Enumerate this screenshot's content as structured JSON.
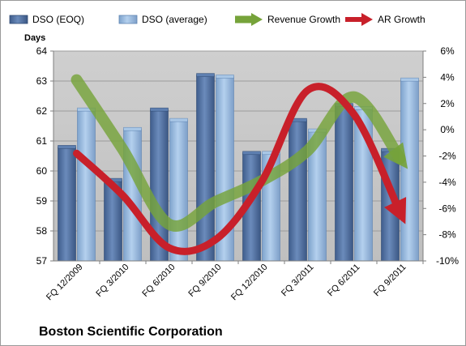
{
  "chart_data": {
    "type": "bar",
    "title": "Boston Scientific Corporation",
    "ylabel": "Days",
    "categories": [
      "FQ 12/2009",
      "FQ 3/2010",
      "FQ 6/2010",
      "FQ 9/2010",
      "FQ 12/2010",
      "FQ 3/2011",
      "FQ 6/2011",
      "FQ 9/2011"
    ],
    "series": [
      {
        "name": "DSO (EOQ)",
        "axis": "left",
        "kind": "bar",
        "values": [
          60.8,
          59.7,
          62.05,
          63.2,
          60.6,
          61.7,
          62.2,
          60.7
        ],
        "color": "#4f6f9f"
      },
      {
        "name": "DSO (average)",
        "axis": "left",
        "kind": "bar",
        "values": [
          62.05,
          61.4,
          61.7,
          63.15,
          60.6,
          61.35,
          62.1,
          63.05
        ],
        "color": "#8fb3da"
      },
      {
        "name": "Revenue Growth",
        "axis": "right",
        "kind": "line",
        "values": [
          3.8,
          -1.5,
          -7.2,
          -5.5,
          -3.9,
          -1.6,
          2.5,
          -2.2
        ],
        "color": "#76a33a"
      },
      {
        "name": "AR Growth",
        "axis": "right",
        "kind": "line",
        "values": [
          -1.8,
          -5.0,
          -9.0,
          -8.4,
          -4.0,
          3.0,
          1.2,
          -6.3
        ],
        "color": "#c8202a"
      }
    ],
    "left_axis": {
      "min": 57,
      "max": 64,
      "ticks": [
        "57",
        "58",
        "59",
        "60",
        "61",
        "62",
        "63",
        "64"
      ]
    },
    "right_axis": {
      "min": -10,
      "max": 6,
      "ticks": [
        "-10%",
        "-8%",
        "-6%",
        "-4%",
        "-2%",
        "0%",
        "2%",
        "4%",
        "6%"
      ]
    },
    "legend_position": "top",
    "grid": true,
    "plot_background": "#c8c8c8"
  }
}
